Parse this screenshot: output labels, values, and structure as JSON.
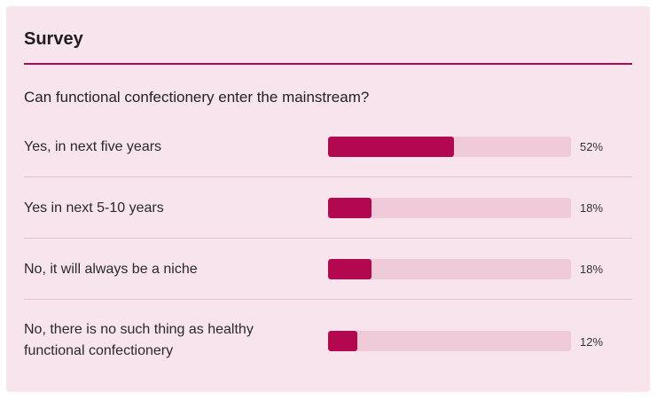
{
  "survey": {
    "title": "Survey",
    "question": "Can functional confectionery enter the mainstream?",
    "accent_color": "#b3074f",
    "track_color": "#efcbd9",
    "background_color": "#f7e4ec",
    "options": [
      {
        "label": "Yes, in next five years",
        "percent": 52,
        "percent_label": "52%"
      },
      {
        "label": "Yes in next 5-10 years",
        "percent": 18,
        "percent_label": "18%"
      },
      {
        "label": "No, it will always be a niche",
        "percent": 18,
        "percent_label": "18%"
      },
      {
        "label": "No, there is no such thing as healthy functional confectionery",
        "percent": 12,
        "percent_label": "12%"
      }
    ]
  }
}
